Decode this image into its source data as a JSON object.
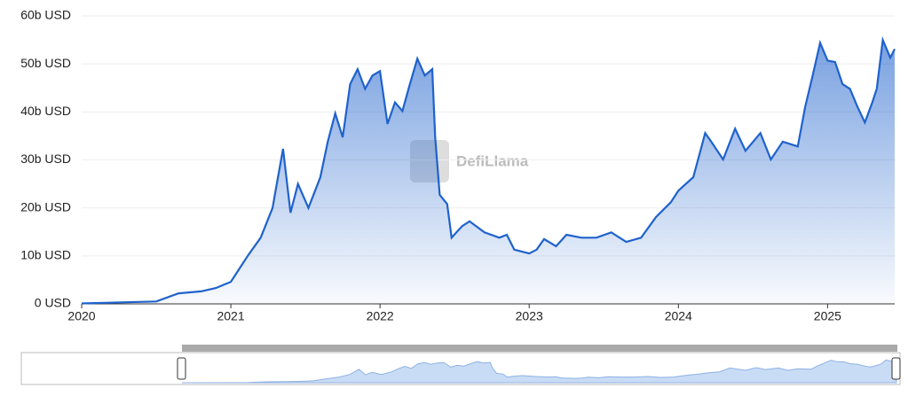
{
  "chart_data": {
    "type": "area",
    "watermark": "DefiLlama",
    "color": "#1f62cc",
    "grid": true,
    "xlim": [
      2020,
      2025.45
    ],
    "xticks": [
      2020,
      2021,
      2022,
      2023,
      2024,
      2025
    ],
    "ylim": [
      0,
      60
    ],
    "yticks": [
      {
        "value": 0,
        "label": "0 USD"
      },
      {
        "value": 10,
        "label": "10b USD"
      },
      {
        "value": 20,
        "label": "20b USD"
      },
      {
        "value": 30,
        "label": "30b USD"
      },
      {
        "value": 40,
        "label": "40b USD"
      },
      {
        "value": 50,
        "label": "50b USD"
      },
      {
        "value": 60,
        "label": "60b USD"
      }
    ],
    "x": [
      2020.0,
      2020.5,
      2020.65,
      2020.8,
      2020.9,
      2021.0,
      2021.05,
      2021.12,
      2021.2,
      2021.28,
      2021.3,
      2021.35,
      2021.4,
      2021.45,
      2021.52,
      2021.6,
      2021.65,
      2021.7,
      2021.75,
      2021.8,
      2021.85,
      2021.9,
      2021.95,
      2022.0,
      2022.05,
      2022.1,
      2022.15,
      2022.2,
      2022.25,
      2022.3,
      2022.35,
      2022.37,
      2022.4,
      2022.45,
      2022.48,
      2022.55,
      2022.6,
      2022.7,
      2022.8,
      2022.85,
      2022.9,
      2023.0,
      2023.05,
      2023.1,
      2023.18,
      2023.25,
      2023.35,
      2023.45,
      2023.55,
      2023.65,
      2023.75,
      2023.85,
      2023.95,
      2024.0,
      2024.1,
      2024.18,
      2024.22,
      2024.3,
      2024.38,
      2024.45,
      2024.55,
      2024.62,
      2024.7,
      2024.8,
      2024.85,
      2024.9,
      2024.95,
      2025.0,
      2025.05,
      2025.1,
      2025.15,
      2025.2,
      2025.25,
      2025.3,
      2025.33,
      2025.37,
      2025.42,
      2025.45
    ],
    "values": [
      0.1,
      0.5,
      2.2,
      2.6,
      3.3,
      4.6,
      7,
      10.3,
      13.8,
      20,
      23.6,
      32.3,
      19,
      25,
      20,
      26.4,
      33.8,
      39.7,
      34.7,
      45.8,
      48.9,
      44.8,
      47.6,
      48.5,
      37.5,
      42,
      40.2,
      45.8,
      51.1,
      47.6,
      48.9,
      34.7,
      22.7,
      20.8,
      13.8,
      16.2,
      17.2,
      14.9,
      13.8,
      14.4,
      11.3,
      10.5,
      11.3,
      13.5,
      12,
      14.4,
      13.8,
      13.8,
      14.9,
      12.9,
      13.8,
      18.1,
      21.2,
      23.6,
      26.4,
      35.6,
      33.8,
      30.1,
      36.5,
      31.9,
      35.6,
      30.1,
      33.8,
      32.8,
      41.1,
      47.6,
      54.4,
      50.7,
      50.4,
      45.8,
      44.8,
      41.1,
      37.8,
      42,
      44.8,
      55,
      51.3,
      53.1
    ]
  }
}
